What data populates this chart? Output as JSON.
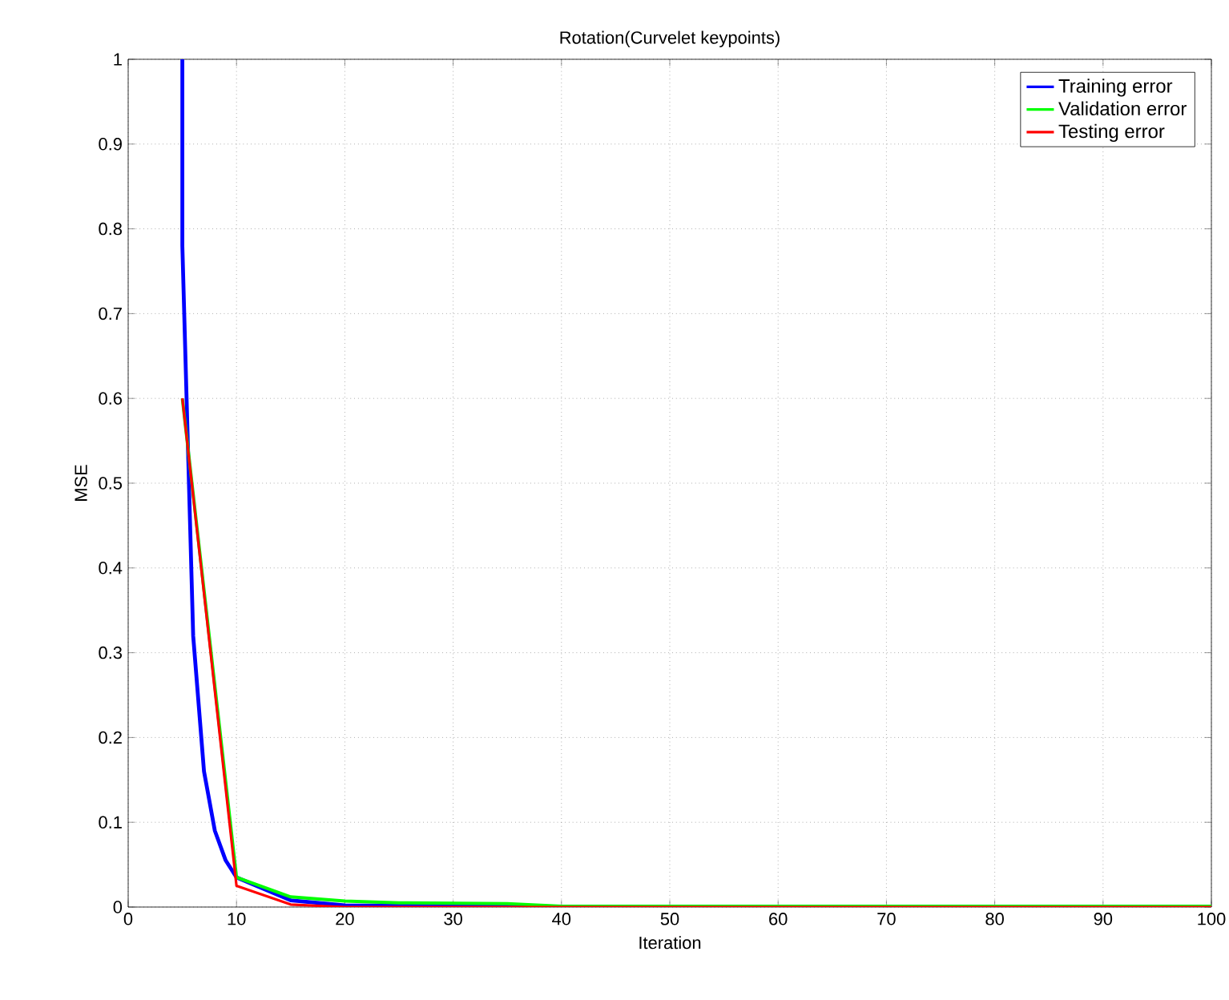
{
  "chart_data": {
    "type": "line",
    "title": "Rotation(Curvelet keypoints)",
    "xlabel": "Iteration",
    "ylabel": "MSE",
    "xlim": [
      0,
      100
    ],
    "ylim": [
      0,
      1
    ],
    "xticks": [
      0,
      10,
      20,
      30,
      40,
      50,
      60,
      70,
      80,
      90,
      100
    ],
    "yticks": [
      0,
      0.1,
      0.2,
      0.3,
      0.4,
      0.5,
      0.6,
      0.7,
      0.8,
      0.9,
      1
    ],
    "grid": true,
    "legend": "top right",
    "marker": "none",
    "line_style": "solid",
    "series": [
      {
        "name": "Training error",
        "color": "#0000ff",
        "x": [
          5,
          5,
          6,
          7,
          8,
          9,
          10,
          15,
          20,
          30,
          40,
          100
        ],
        "values": [
          1,
          0.78,
          0.32,
          0.16,
          0.09,
          0.055,
          0.035,
          0.008,
          0.002,
          0.001,
          0,
          0
        ]
      },
      {
        "name": "Validation error",
        "color": "#00ff00",
        "x": [
          5,
          10,
          15,
          20,
          25,
          35,
          40,
          100
        ],
        "values": [
          0.6,
          0.035,
          0.012,
          0.007,
          0.005,
          0.004,
          0.001,
          0.001
        ]
      },
      {
        "name": "Testing error",
        "color": "#ff0000",
        "x": [
          5,
          10,
          15,
          20,
          100
        ],
        "values": [
          0.6,
          0.025,
          0.003,
          0,
          0
        ]
      }
    ]
  }
}
